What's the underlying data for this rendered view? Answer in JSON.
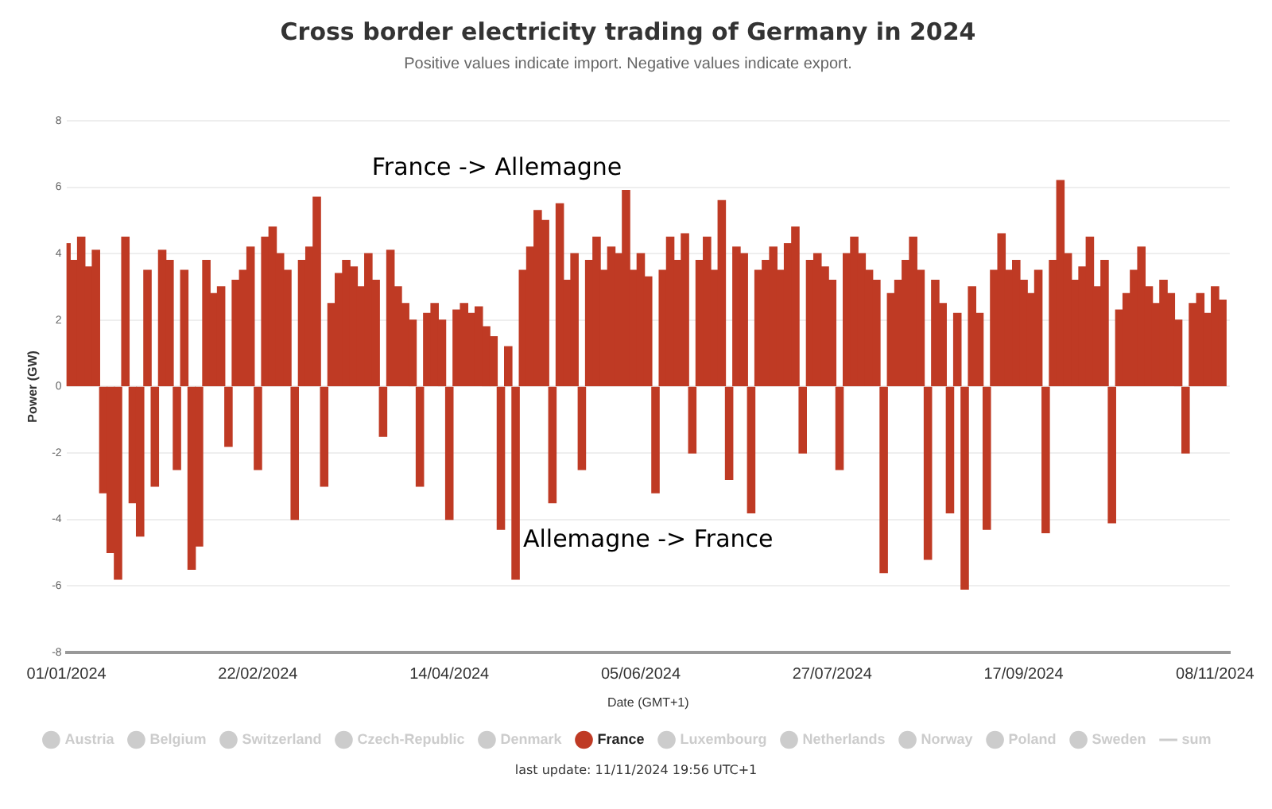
{
  "chart_data": {
    "type": "bar",
    "title": "Cross border electricity trading of Germany in 2024",
    "subtitle": "Positive values indicate import. Negative values indicate export.",
    "xlabel": "Date (GMT+1)",
    "ylabel": "Power (GW)",
    "annotations": [
      "France -> Allemagne",
      "Allemagne -> France",
      "last update: 11/11/2024 19:56 UTC+1"
    ],
    "x": [
      "2024-01-01",
      "2024-01-03",
      "2024-01-05",
      "2024-01-07",
      "2024-01-09",
      "2024-01-11",
      "2024-01-13",
      "2024-01-15",
      "2024-01-17",
      "2024-01-19",
      "2024-01-21",
      "2024-01-23",
      "2024-01-25",
      "2024-01-27",
      "2024-01-29",
      "2024-01-31",
      "2024-02-02",
      "2024-02-04",
      "2024-02-06",
      "2024-02-08",
      "2024-02-10",
      "2024-02-12",
      "2024-02-14",
      "2024-02-16",
      "2024-02-18",
      "2024-02-20",
      "2024-02-22",
      "2024-02-24",
      "2024-02-26",
      "2024-02-28",
      "2024-03-01",
      "2024-03-03",
      "2024-03-05",
      "2024-03-07",
      "2024-03-09",
      "2024-03-11",
      "2024-03-13",
      "2024-03-15",
      "2024-03-17",
      "2024-03-19",
      "2024-03-21",
      "2024-03-23",
      "2024-03-25",
      "2024-03-27",
      "2024-03-29",
      "2024-03-31",
      "2024-04-02",
      "2024-04-04",
      "2024-04-06",
      "2024-04-08",
      "2024-04-10",
      "2024-04-12",
      "2024-04-14",
      "2024-04-16",
      "2024-04-18",
      "2024-04-20",
      "2024-04-22",
      "2024-04-24",
      "2024-04-26",
      "2024-04-28",
      "2024-04-30",
      "2024-05-02",
      "2024-05-04",
      "2024-05-06",
      "2024-05-08",
      "2024-05-10",
      "2024-05-12",
      "2024-05-14",
      "2024-05-16",
      "2024-05-18",
      "2024-05-20",
      "2024-05-22",
      "2024-05-24",
      "2024-05-26",
      "2024-05-28",
      "2024-05-30",
      "2024-06-01",
      "2024-06-03",
      "2024-06-05",
      "2024-06-07",
      "2024-06-09",
      "2024-06-11",
      "2024-06-13",
      "2024-06-15",
      "2024-06-17",
      "2024-06-19",
      "2024-06-21",
      "2024-06-23",
      "2024-06-25",
      "2024-06-27",
      "2024-06-29",
      "2024-07-01",
      "2024-07-03",
      "2024-07-05",
      "2024-07-07",
      "2024-07-09",
      "2024-07-11",
      "2024-07-13",
      "2024-07-15",
      "2024-07-17",
      "2024-07-19",
      "2024-07-21",
      "2024-07-23",
      "2024-07-25",
      "2024-07-27",
      "2024-07-29",
      "2024-07-31",
      "2024-08-02",
      "2024-08-04",
      "2024-08-06",
      "2024-08-08",
      "2024-08-10",
      "2024-08-12",
      "2024-08-14",
      "2024-08-16",
      "2024-08-18",
      "2024-08-20",
      "2024-08-22",
      "2024-08-24",
      "2024-08-26",
      "2024-08-28",
      "2024-08-30",
      "2024-09-01",
      "2024-09-03",
      "2024-09-05",
      "2024-09-07",
      "2024-09-09",
      "2024-09-11",
      "2024-09-13",
      "2024-09-15",
      "2024-09-17",
      "2024-09-19",
      "2024-09-21",
      "2024-09-23",
      "2024-09-25",
      "2024-09-27",
      "2024-09-29",
      "2024-10-01",
      "2024-10-03",
      "2024-10-05",
      "2024-10-07",
      "2024-10-09",
      "2024-10-11",
      "2024-10-13",
      "2024-10-15",
      "2024-10-17",
      "2024-10-19",
      "2024-10-21",
      "2024-10-23",
      "2024-10-25",
      "2024-10-27",
      "2024-10-29",
      "2024-10-31",
      "2024-11-02",
      "2024-11-04",
      "2024-11-06",
      "2024-11-08",
      "2024-11-10"
    ],
    "series": [
      {
        "name": "Austria",
        "color": "#cccccc",
        "values": [
          null,
          null,
          null,
          null,
          null,
          null,
          null,
          null,
          null,
          null,
          null,
          null,
          null,
          null,
          null,
          null,
          null,
          null,
          null,
          null,
          null,
          null,
          null,
          null,
          null,
          null,
          null,
          null,
          null,
          null,
          null,
          null,
          null,
          null,
          null,
          null,
          null,
          null,
          null,
          null,
          null,
          null,
          null,
          null,
          null,
          null,
          null,
          null,
          null,
          null,
          null,
          null,
          null,
          null,
          null,
          null,
          null,
          null,
          null,
          null,
          null,
          null,
          null,
          null,
          null,
          null,
          null,
          null,
          null,
          null,
          null,
          null,
          null,
          null,
          null,
          null,
          null,
          null,
          null,
          null,
          null,
          null,
          null,
          null,
          null,
          null,
          null,
          null,
          null,
          null,
          null,
          null,
          null,
          null,
          null,
          null,
          null,
          null,
          null,
          null,
          null,
          null,
          null,
          null,
          null,
          null,
          null,
          null,
          null,
          null,
          null,
          null,
          null,
          null,
          null,
          null,
          null,
          null,
          null,
          null,
          null,
          null,
          null,
          null,
          null,
          null,
          null,
          null,
          null,
          null,
          null,
          null,
          null,
          null,
          null,
          null,
          null,
          null,
          null,
          null,
          null,
          null,
          null,
          null,
          null,
          null,
          null,
          null,
          null,
          null,
          null,
          null,
          null,
          null,
          null,
          null,
          null,
          null
        ]
      },
      {
        "name": "Belgium",
        "color": "#cccccc",
        "values": [
          null,
          null,
          null,
          null,
          null,
          null,
          null,
          null,
          null,
          null,
          null,
          null,
          null,
          null,
          null,
          null,
          null,
          null,
          null,
          null,
          null,
          null,
          null,
          null,
          null,
          null,
          null,
          null,
          null,
          null,
          null,
          null,
          null,
          null,
          null,
          null,
          null,
          null,
          null,
          null,
          null,
          null,
          null,
          null,
          null,
          null,
          null,
          null,
          null,
          null,
          null,
          null,
          null,
          null,
          null,
          null,
          null,
          null,
          null,
          null,
          null,
          null,
          null,
          null,
          null,
          null,
          null,
          null,
          null,
          null,
          null,
          null,
          null,
          null,
          null,
          null,
          null,
          null,
          null,
          null,
          null,
          null,
          null,
          null,
          null,
          null,
          null,
          null,
          null,
          null,
          null,
          null,
          null,
          null,
          null,
          null,
          null,
          null,
          null,
          null,
          null,
          null,
          null,
          null,
          null,
          null,
          null,
          null,
          null,
          null,
          null,
          null,
          null,
          null,
          null,
          null,
          null,
          null,
          null,
          null,
          null,
          null,
          null,
          null,
          null,
          null,
          null,
          null,
          null,
          null,
          null,
          null,
          null,
          null,
          null,
          null,
          null,
          null,
          null,
          null,
          null,
          null,
          null,
          null,
          null,
          null,
          null,
          null,
          null,
          null,
          null,
          null,
          null,
          null,
          null,
          null,
          null,
          null
        ]
      },
      {
        "name": "Switzerland",
        "color": "#cccccc",
        "values": [
          null,
          null,
          null,
          null,
          null,
          null,
          null,
          null,
          null,
          null,
          null,
          null,
          null,
          null,
          null,
          null,
          null,
          null,
          null,
          null,
          null,
          null,
          null,
          null,
          null,
          null,
          null,
          null,
          null,
          null,
          null,
          null,
          null,
          null,
          null,
          null,
          null,
          null,
          null,
          null,
          null,
          null,
          null,
          null,
          null,
          null,
          null,
          null,
          null,
          null,
          null,
          null,
          null,
          null,
          null,
          null,
          null,
          null,
          null,
          null,
          null,
          null,
          null,
          null,
          null,
          null,
          null,
          null,
          null,
          null,
          null,
          null,
          null,
          null,
          null,
          null,
          null,
          null,
          null,
          null,
          null,
          null,
          null,
          null,
          null,
          null,
          null,
          null,
          null,
          null,
          null,
          null,
          null,
          null,
          null,
          null,
          null,
          null,
          null,
          null,
          null,
          null,
          null,
          null,
          null,
          null,
          null,
          null,
          null,
          null,
          null,
          null,
          null,
          null,
          null,
          null,
          null,
          null,
          null,
          null,
          null,
          null,
          null,
          null,
          null,
          null,
          null,
          null,
          null,
          null,
          null,
          null,
          null,
          null,
          null,
          null,
          null,
          null,
          null,
          null,
          null,
          null,
          null,
          null,
          null,
          null,
          null,
          null,
          null,
          null,
          null,
          null,
          null,
          null,
          null,
          null,
          null,
          null
        ]
      },
      {
        "name": "Czech-Republic",
        "color": "#cccccc",
        "values": [
          null,
          null,
          null,
          null,
          null,
          null,
          null,
          null,
          null,
          null,
          null,
          null,
          null,
          null,
          null,
          null,
          null,
          null,
          null,
          null,
          null,
          null,
          null,
          null,
          null,
          null,
          null,
          null,
          null,
          null,
          null,
          null,
          null,
          null,
          null,
          null,
          null,
          null,
          null,
          null,
          null,
          null,
          null,
          null,
          null,
          null,
          null,
          null,
          null,
          null,
          null,
          null,
          null,
          null,
          null,
          null,
          null,
          null,
          null,
          null,
          null,
          null,
          null,
          null,
          null,
          null,
          null,
          null,
          null,
          null,
          null,
          null,
          null,
          null,
          null,
          null,
          null,
          null,
          null,
          null,
          null,
          null,
          null,
          null,
          null,
          null,
          null,
          null,
          null,
          null,
          null,
          null,
          null,
          null,
          null,
          null,
          null,
          null,
          null,
          null,
          null,
          null,
          null,
          null,
          null,
          null,
          null,
          null,
          null,
          null,
          null,
          null,
          null,
          null,
          null,
          null,
          null,
          null,
          null,
          null,
          null,
          null,
          null,
          null,
          null,
          null,
          null,
          null,
          null,
          null,
          null,
          null,
          null,
          null,
          null,
          null,
          null,
          null,
          null,
          null,
          null,
          null,
          null,
          null,
          null,
          null,
          null,
          null,
          null,
          null,
          null,
          null,
          null,
          null,
          null,
          null,
          null,
          null
        ]
      },
      {
        "name": "Denmark",
        "color": "#cccccc",
        "values": [
          null,
          null,
          null,
          null,
          null,
          null,
          null,
          null,
          null,
          null,
          null,
          null,
          null,
          null,
          null,
          null,
          null,
          null,
          null,
          null,
          null,
          null,
          null,
          null,
          null,
          null,
          null,
          null,
          null,
          null,
          null,
          null,
          null,
          null,
          null,
          null,
          null,
          null,
          null,
          null,
          null,
          null,
          null,
          null,
          null,
          null,
          null,
          null,
          null,
          null,
          null,
          null,
          null,
          null,
          null,
          null,
          null,
          null,
          null,
          null,
          null,
          null,
          null,
          null,
          null,
          null,
          null,
          null,
          null,
          null,
          null,
          null,
          null,
          null,
          null,
          null,
          null,
          null,
          null,
          null,
          null,
          null,
          null,
          null,
          null,
          null,
          null,
          null,
          null,
          null,
          null,
          null,
          null,
          null,
          null,
          null,
          null,
          null,
          null,
          null,
          null,
          null,
          null,
          null,
          null,
          null,
          null,
          null,
          null,
          null,
          null,
          null,
          null,
          null,
          null,
          null,
          null,
          null,
          null,
          null,
          null,
          null,
          null,
          null,
          null,
          null,
          null,
          null,
          null,
          null,
          null,
          null,
          null,
          null,
          null,
          null,
          null,
          null,
          null,
          null,
          null,
          null,
          null,
          null,
          null,
          null,
          null,
          null,
          null,
          null,
          null,
          null,
          null,
          null,
          null,
          null,
          null,
          null
        ]
      },
      {
        "name": "France",
        "color": "#bf3a24",
        "values": [
          4.3,
          3.8,
          4.5,
          3.6,
          4.1,
          -3.2,
          -5.0,
          -5.8,
          4.5,
          -3.5,
          -4.5,
          3.5,
          -3.0,
          4.1,
          3.8,
          -2.5,
          3.5,
          -5.5,
          -4.8,
          3.8,
          2.8,
          3.0,
          -1.8,
          3.2,
          3.5,
          4.2,
          -2.5,
          4.5,
          4.8,
          4.0,
          3.5,
          -4.0,
          3.8,
          4.2,
          5.7,
          -3.0,
          2.5,
          3.4,
          3.8,
          3.6,
          3.0,
          4.0,
          3.2,
          -1.5,
          4.1,
          3.0,
          2.5,
          2.0,
          -3.0,
          2.2,
          2.5,
          2.0,
          -4.0,
          2.3,
          2.5,
          2.2,
          2.4,
          1.8,
          1.5,
          -4.3,
          1.2,
          -5.8,
          3.5,
          4.2,
          5.3,
          5.0,
          -3.5,
          5.5,
          3.2,
          4.0,
          -2.5,
          3.8,
          4.5,
          3.5,
          4.2,
          4.0,
          5.9,
          3.5,
          4.0,
          3.3,
          -3.2,
          3.5,
          4.5,
          3.8,
          4.6,
          -2.0,
          3.8,
          4.5,
          3.5,
          5.6,
          -2.8,
          4.2,
          4.0,
          -3.8,
          3.5,
          3.8,
          4.2,
          3.5,
          4.3,
          4.8,
          -2.0,
          3.8,
          4.0,
          3.6,
          3.2,
          -2.5,
          4.0,
          4.5,
          4.0,
          3.5,
          3.2,
          -5.6,
          2.8,
          3.2,
          3.8,
          4.5,
          3.5,
          -5.2,
          3.2,
          2.5,
          -3.8,
          2.2,
          -6.1,
          3.0,
          2.2,
          -4.3,
          3.5,
          4.6,
          3.5,
          3.8,
          3.2,
          2.8,
          3.5,
          -4.4,
          3.8,
          6.2,
          4.0,
          3.2,
          3.6,
          4.5,
          3.0,
          3.8,
          -4.1,
          2.3,
          2.8,
          3.5,
          4.2,
          3.0,
          2.5,
          3.2,
          2.8,
          2.0,
          -2.0,
          2.5,
          2.8,
          2.2,
          3.0,
          2.6
        ]
      },
      {
        "name": "Luxembourg",
        "color": "#cccccc",
        "values": [
          null,
          null,
          null,
          null,
          null,
          null,
          null,
          null,
          null,
          null,
          null,
          null,
          null,
          null,
          null,
          null,
          null,
          null,
          null,
          null,
          null,
          null,
          null,
          null,
          null,
          null,
          null,
          null,
          null,
          null,
          null,
          null,
          null,
          null,
          null,
          null,
          null,
          null,
          null,
          null,
          null,
          null,
          null,
          null,
          null,
          null,
          null,
          null,
          null,
          null,
          null,
          null,
          null,
          null,
          null,
          null,
          null,
          null,
          null,
          null,
          null,
          null,
          null,
          null,
          null,
          null,
          null,
          null,
          null,
          null,
          null,
          null,
          null,
          null,
          null,
          null,
          null,
          null,
          null,
          null,
          null,
          null,
          null,
          null,
          null,
          null,
          null,
          null,
          null,
          null,
          null,
          null,
          null,
          null,
          null,
          null,
          null,
          null,
          null,
          null,
          null,
          null,
          null,
          null,
          null,
          null,
          null,
          null,
          null,
          null,
          null,
          null,
          null,
          null,
          null,
          null,
          null,
          null,
          null,
          null,
          null,
          null,
          null,
          null,
          null,
          null,
          null,
          null,
          null,
          null,
          null,
          null,
          null,
          null,
          null,
          null,
          null,
          null,
          null,
          null,
          null,
          null,
          null,
          null,
          null,
          null,
          null,
          null,
          null,
          null,
          null,
          null,
          null,
          null,
          null,
          null,
          null,
          null
        ]
      },
      {
        "name": "Netherlands",
        "color": "#cccccc",
        "values": [
          null,
          null,
          null,
          null,
          null,
          null,
          null,
          null,
          null,
          null,
          null,
          null,
          null,
          null,
          null,
          null,
          null,
          null,
          null,
          null,
          null,
          null,
          null,
          null,
          null,
          null,
          null,
          null,
          null,
          null,
          null,
          null,
          null,
          null,
          null,
          null,
          null,
          null,
          null,
          null,
          null,
          null,
          null,
          null,
          null,
          null,
          null,
          null,
          null,
          null,
          null,
          null,
          null,
          null,
          null,
          null,
          null,
          null,
          null,
          null,
          null,
          null,
          null,
          null,
          null,
          null,
          null,
          null,
          null,
          null,
          null,
          null,
          null,
          null,
          null,
          null,
          null,
          null,
          null,
          null,
          null,
          null,
          null,
          null,
          null,
          null,
          null,
          null,
          null,
          null,
          null,
          null,
          null,
          null,
          null,
          null,
          null,
          null,
          null,
          null,
          null,
          null,
          null,
          null,
          null,
          null,
          null,
          null,
          null,
          null,
          null,
          null,
          null,
          null,
          null,
          null,
          null,
          null,
          null,
          null,
          null,
          null,
          null,
          null,
          null,
          null,
          null,
          null,
          null,
          null,
          null,
          null,
          null,
          null,
          null,
          null,
          null,
          null,
          null,
          null,
          null,
          null,
          null,
          null,
          null,
          null,
          null,
          null,
          null,
          null,
          null,
          null,
          null,
          null,
          null,
          null,
          null,
          null
        ]
      },
      {
        "name": "Norway",
        "color": "#cccccc",
        "values": [
          null,
          null,
          null,
          null,
          null,
          null,
          null,
          null,
          null,
          null,
          null,
          null,
          null,
          null,
          null,
          null,
          null,
          null,
          null,
          null,
          null,
          null,
          null,
          null,
          null,
          null,
          null,
          null,
          null,
          null,
          null,
          null,
          null,
          null,
          null,
          null,
          null,
          null,
          null,
          null,
          null,
          null,
          null,
          null,
          null,
          null,
          null,
          null,
          null,
          null,
          null,
          null,
          null,
          null,
          null,
          null,
          null,
          null,
          null,
          null,
          null,
          null,
          null,
          null,
          null,
          null,
          null,
          null,
          null,
          null,
          null,
          null,
          null,
          null,
          null,
          null,
          null,
          null,
          null,
          null,
          null,
          null,
          null,
          null,
          null,
          null,
          null,
          null,
          null,
          null,
          null,
          null,
          null,
          null,
          null,
          null,
          null,
          null,
          null,
          null,
          null,
          null,
          null,
          null,
          null,
          null,
          null,
          null,
          null,
          null,
          null,
          null,
          null,
          null,
          null,
          null,
          null,
          null,
          null,
          null,
          null,
          null,
          null,
          null,
          null,
          null,
          null,
          null,
          null,
          null,
          null,
          null,
          null,
          null,
          null,
          null,
          null,
          null,
          null,
          null,
          null,
          null,
          null,
          null,
          null,
          null,
          null,
          null,
          null,
          null,
          null,
          null,
          null,
          null,
          null,
          null,
          null,
          null
        ]
      },
      {
        "name": "Poland",
        "color": "#cccccc",
        "values": [
          null,
          null,
          null,
          null,
          null,
          null,
          null,
          null,
          null,
          null,
          null,
          null,
          null,
          null,
          null,
          null,
          null,
          null,
          null,
          null,
          null,
          null,
          null,
          null,
          null,
          null,
          null,
          null,
          null,
          null,
          null,
          null,
          null,
          null,
          null,
          null,
          null,
          null,
          null,
          null,
          null,
          null,
          null,
          null,
          null,
          null,
          null,
          null,
          null,
          null,
          null,
          null,
          null,
          null,
          null,
          null,
          null,
          null,
          null,
          null,
          null,
          null,
          null,
          null,
          null,
          null,
          null,
          null,
          null,
          null,
          null,
          null,
          null,
          null,
          null,
          null,
          null,
          null,
          null,
          null,
          null,
          null,
          null,
          null,
          null,
          null,
          null,
          null,
          null,
          null,
          null,
          null,
          null,
          null,
          null,
          null,
          null,
          null,
          null,
          null,
          null,
          null,
          null,
          null,
          null,
          null,
          null,
          null,
          null,
          null,
          null,
          null,
          null,
          null,
          null,
          null,
          null,
          null,
          null,
          null,
          null,
          null,
          null,
          null,
          null,
          null,
          null,
          null,
          null,
          null,
          null,
          null,
          null,
          null,
          null,
          null,
          null,
          null,
          null,
          null,
          null,
          null,
          null,
          null,
          null,
          null,
          null,
          null,
          null,
          null,
          null,
          null,
          null,
          null,
          null,
          null,
          null,
          null
        ]
      },
      {
        "name": "Sweden",
        "color": "#cccccc",
        "values": [
          null,
          null,
          null,
          null,
          null,
          null,
          null,
          null,
          null,
          null,
          null,
          null,
          null,
          null,
          null,
          null,
          null,
          null,
          null,
          null,
          null,
          null,
          null,
          null,
          null,
          null,
          null,
          null,
          null,
          null,
          null,
          null,
          null,
          null,
          null,
          null,
          null,
          null,
          null,
          null,
          null,
          null,
          null,
          null,
          null,
          null,
          null,
          null,
          null,
          null,
          null,
          null,
          null,
          null,
          null,
          null,
          null,
          null,
          null,
          null,
          null,
          null,
          null,
          null,
          null,
          null,
          null,
          null,
          null,
          null,
          null,
          null,
          null,
          null,
          null,
          null,
          null,
          null,
          null,
          null,
          null,
          null,
          null,
          null,
          null,
          null,
          null,
          null,
          null,
          null,
          null,
          null,
          null,
          null,
          null,
          null,
          null,
          null,
          null,
          null,
          null,
          null,
          null,
          null,
          null,
          null,
          null,
          null,
          null,
          null,
          null,
          null,
          null,
          null,
          null,
          null,
          null,
          null,
          null,
          null,
          null,
          null,
          null,
          null,
          null,
          null,
          null,
          null,
          null,
          null,
          null,
          null,
          null,
          null,
          null,
          null,
          null,
          null,
          null,
          null,
          null,
          null,
          null,
          null,
          null,
          null,
          null,
          null,
          null,
          null,
          null,
          null,
          null,
          null,
          null,
          null,
          null,
          null
        ]
      },
      {
        "name": "sum",
        "type": "line",
        "color": "#cccccc",
        "values": [
          null,
          null,
          null,
          null,
          null,
          null,
          null,
          null,
          null,
          null,
          null,
          null,
          null,
          null,
          null,
          null,
          null,
          null,
          null,
          null,
          null,
          null,
          null,
          null,
          null,
          null,
          null,
          null,
          null,
          null,
          null,
          null,
          null,
          null,
          null,
          null,
          null,
          null,
          null,
          null,
          null,
          null,
          null,
          null,
          null,
          null,
          null,
          null,
          null,
          null,
          null,
          null,
          null,
          null,
          null,
          null,
          null,
          null,
          null,
          null,
          null,
          null,
          null,
          null,
          null,
          null,
          null,
          null,
          null,
          null,
          null,
          null,
          null,
          null,
          null,
          null,
          null,
          null,
          null,
          null,
          null,
          null,
          null,
          null,
          null,
          null,
          null,
          null,
          null,
          null,
          null,
          null,
          null,
          null,
          null,
          null,
          null,
          null,
          null,
          null,
          null,
          null,
          null,
          null,
          null,
          null,
          null,
          null,
          null,
          null,
          null,
          null,
          null,
          null,
          null,
          null,
          null,
          null,
          null,
          null,
          null,
          null,
          null,
          null,
          null,
          null,
          null,
          null,
          null,
          null,
          null,
          null,
          null,
          null,
          null,
          null,
          null,
          null,
          null,
          null,
          null,
          null,
          null,
          null,
          null,
          null,
          null,
          null,
          null,
          null,
          null,
          null,
          null,
          null,
          null,
          null,
          null,
          null
        ]
      }
    ],
    "xlim": [
      "2024-01-01",
      "2024-11-12"
    ],
    "xticks": [
      {
        "value": "2024-01-01",
        "label": "01/01/2024"
      },
      {
        "value": "2024-02-22",
        "label": "22/02/2024"
      },
      {
        "value": "2024-04-14",
        "label": "14/04/2024"
      },
      {
        "value": "2024-06-05",
        "label": "05/06/2024"
      },
      {
        "value": "2024-07-27",
        "label": "27/07/2024"
      },
      {
        "value": "2024-09-17",
        "label": "17/09/2024"
      },
      {
        "value": "2024-11-08",
        "label": "08/11/2024"
      }
    ],
    "ylim": [
      -8,
      8
    ],
    "yticks": [
      -8,
      -6,
      -4,
      -2,
      0,
      2,
      4,
      6,
      8
    ],
    "grid": "y",
    "legend": "bottom"
  }
}
